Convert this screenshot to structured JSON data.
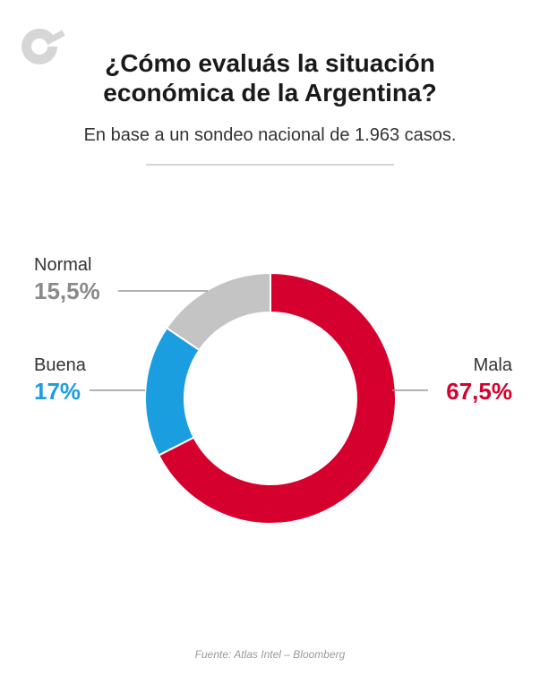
{
  "header": {
    "title_line1": "¿Cómo evaluás la situación",
    "title_line2": "económica de la Argentina?",
    "subtitle": "En base a un sondeo nacional de 1.963 casos."
  },
  "chart_data": {
    "type": "pie",
    "donut": true,
    "categories": [
      "Mala",
      "Buena",
      "Normal"
    ],
    "values": [
      67.5,
      17,
      15.5
    ],
    "value_labels": [
      "67,5%",
      "17%",
      "15,5%"
    ],
    "colors": [
      "#d6002f",
      "#1a9ee0",
      "#c4c4c4"
    ],
    "start_angle_deg": 0,
    "direction": "clockwise",
    "title": "¿Cómo evaluás la situación económica de la Argentina?",
    "legend": "none"
  },
  "footer": {
    "source": "Fuente: Atlas Intel – Bloomberg"
  },
  "logo": {
    "icon": "brand-logo-icon",
    "color": "#d6d6d6"
  }
}
